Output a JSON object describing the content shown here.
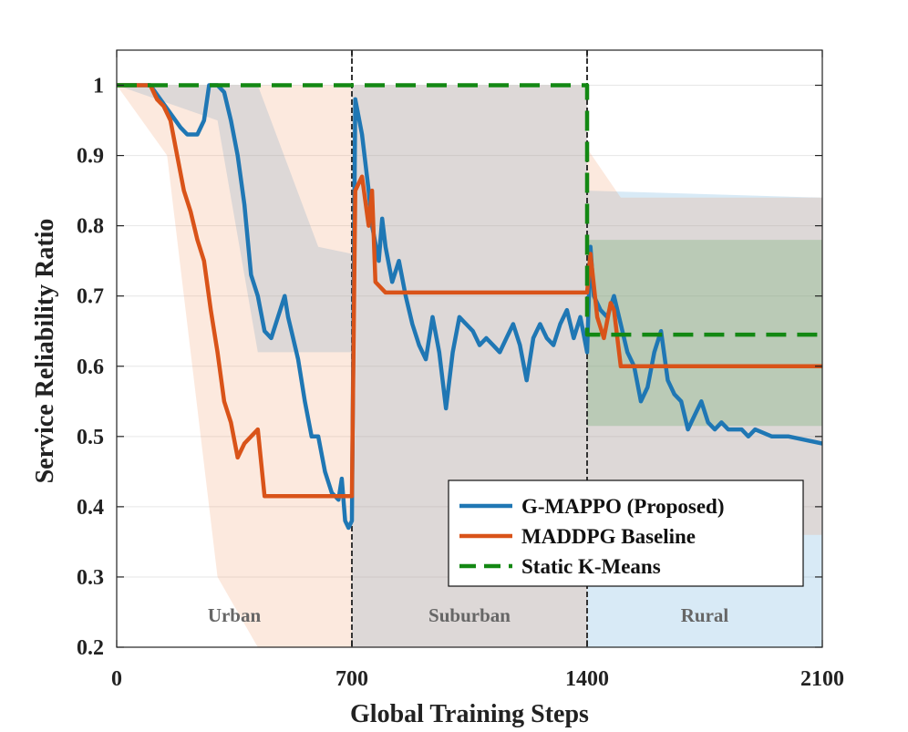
{
  "chart_data": {
    "type": "line",
    "xlabel": "Global Training Steps",
    "ylabel": "Service Reliability Ratio",
    "xlim": [
      0,
      2100
    ],
    "ylim": [
      0.2,
      1.05
    ],
    "xticks": [
      0,
      700,
      1400,
      2100
    ],
    "xtick_labels": [
      "0",
      "700",
      "1400",
      "2100"
    ],
    "yticks": [
      0.2,
      0.3,
      0.4,
      0.5,
      0.6,
      0.7,
      0.8,
      0.9,
      1.0
    ],
    "ytick_labels": [
      "0.2",
      "0.3",
      "0.4",
      "0.5",
      "0.6",
      "0.7",
      "0.8",
      "0.9",
      "1"
    ],
    "grid": "horizontal",
    "legend_position": "bottom-right",
    "phase_boundaries": [
      700,
      1400
    ],
    "regions": [
      {
        "label": "Urban",
        "x": 350
      },
      {
        "label": "Suburban",
        "x": 1050
      },
      {
        "label": "Rural",
        "x": 1750
      }
    ],
    "series": [
      {
        "name": "G-MAPPO (Proposed)",
        "color": "#1f77b4",
        "style": "solid",
        "x": [
          0,
          100,
          130,
          160,
          190,
          210,
          240,
          260,
          275,
          300,
          320,
          340,
          360,
          380,
          400,
          420,
          440,
          460,
          480,
          500,
          510,
          520,
          540,
          560,
          580,
          600,
          620,
          640,
          660,
          670,
          680,
          690,
          700,
          710,
          730,
          750,
          760,
          780,
          790,
          800,
          820,
          840,
          860,
          880,
          900,
          920,
          940,
          960,
          980,
          1000,
          1020,
          1040,
          1060,
          1080,
          1100,
          1120,
          1140,
          1160,
          1180,
          1200,
          1220,
          1240,
          1260,
          1280,
          1300,
          1320,
          1340,
          1360,
          1380,
          1400,
          1410,
          1420,
          1440,
          1460,
          1480,
          1500,
          1520,
          1540,
          1560,
          1580,
          1600,
          1620,
          1640,
          1660,
          1680,
          1700,
          1720,
          1740,
          1760,
          1780,
          1800,
          1820,
          1840,
          1860,
          1880,
          1900,
          1950,
          2000,
          2050,
          2100
        ],
        "values": [
          1.0,
          1.0,
          0.98,
          0.96,
          0.94,
          0.93,
          0.93,
          0.95,
          1.0,
          1.0,
          0.99,
          0.95,
          0.9,
          0.83,
          0.73,
          0.7,
          0.65,
          0.64,
          0.67,
          0.7,
          0.67,
          0.65,
          0.61,
          0.55,
          0.5,
          0.5,
          0.45,
          0.42,
          0.41,
          0.44,
          0.38,
          0.37,
          0.38,
          0.98,
          0.93,
          0.85,
          0.8,
          0.75,
          0.81,
          0.77,
          0.72,
          0.75,
          0.7,
          0.66,
          0.63,
          0.61,
          0.67,
          0.62,
          0.54,
          0.62,
          0.67,
          0.66,
          0.65,
          0.63,
          0.64,
          0.63,
          0.62,
          0.64,
          0.66,
          0.63,
          0.58,
          0.64,
          0.66,
          0.64,
          0.63,
          0.66,
          0.68,
          0.64,
          0.67,
          0.62,
          0.77,
          0.7,
          0.68,
          0.67,
          0.7,
          0.66,
          0.62,
          0.6,
          0.55,
          0.57,
          0.62,
          0.65,
          0.58,
          0.56,
          0.55,
          0.51,
          0.53,
          0.55,
          0.52,
          0.51,
          0.52,
          0.51,
          0.51,
          0.51,
          0.5,
          0.51,
          0.5,
          0.5,
          0.495,
          0.49
        ]
      },
      {
        "name": "MADDPG Baseline",
        "color": "#d95319",
        "style": "solid",
        "x": [
          0,
          100,
          120,
          140,
          160,
          180,
          200,
          220,
          240,
          260,
          280,
          300,
          320,
          340,
          360,
          380,
          400,
          420,
          440,
          700,
          710,
          730,
          750,
          760,
          770,
          800,
          1400,
          1410,
          1430,
          1450,
          1470,
          1480,
          1500,
          1540,
          2100
        ],
        "values": [
          1.0,
          1.0,
          0.98,
          0.97,
          0.95,
          0.9,
          0.85,
          0.82,
          0.78,
          0.75,
          0.68,
          0.62,
          0.55,
          0.52,
          0.47,
          0.49,
          0.5,
          0.51,
          0.415,
          0.415,
          0.85,
          0.87,
          0.8,
          0.85,
          0.72,
          0.705,
          0.705,
          0.76,
          0.67,
          0.64,
          0.69,
          0.68,
          0.6,
          0.6,
          0.6
        ]
      },
      {
        "name": "Static K-Means",
        "color": "#138813",
        "style": "dashed",
        "x": [
          0,
          700,
          700,
          1400,
          1400,
          2100
        ],
        "values": [
          1.0,
          1.0,
          1.0,
          1.0,
          0.645,
          0.645
        ]
      }
    ],
    "confidence_bands": [
      {
        "series": "G-MAPPO (Proposed)",
        "color": "#4c9fd8",
        "opacity": 0.22,
        "x": [
          0,
          300,
          420,
          600,
          700,
          700,
          1400,
          1400,
          2100
        ],
        "upper": [
          1.0,
          1.0,
          1.0,
          0.77,
          0.76,
          1.0,
          1.0,
          0.85,
          0.84
        ],
        "lower": [
          1.0,
          0.95,
          0.62,
          0.62,
          0.62,
          0.2,
          0.2,
          0.2,
          0.2
        ]
      },
      {
        "series": "MADDPG Baseline",
        "color": "#f39a6a",
        "opacity": 0.22,
        "x": [
          0,
          150,
          300,
          420,
          700,
          700,
          1400,
          1400,
          1500,
          2100
        ],
        "upper": [
          1.0,
          1.0,
          1.0,
          1.0,
          1.0,
          1.0,
          1.0,
          0.91,
          0.84,
          0.84
        ],
        "lower": [
          1.0,
          0.9,
          0.3,
          0.2,
          0.2,
          0.2,
          0.2,
          0.36,
          0.36,
          0.36
        ]
      },
      {
        "series": "Static K-Means",
        "color": "#6aa86a",
        "opacity": 0.3,
        "x": [
          1400,
          2100
        ],
        "upper": [
          0.78,
          0.78
        ],
        "lower": [
          0.515,
          0.515
        ]
      }
    ]
  }
}
